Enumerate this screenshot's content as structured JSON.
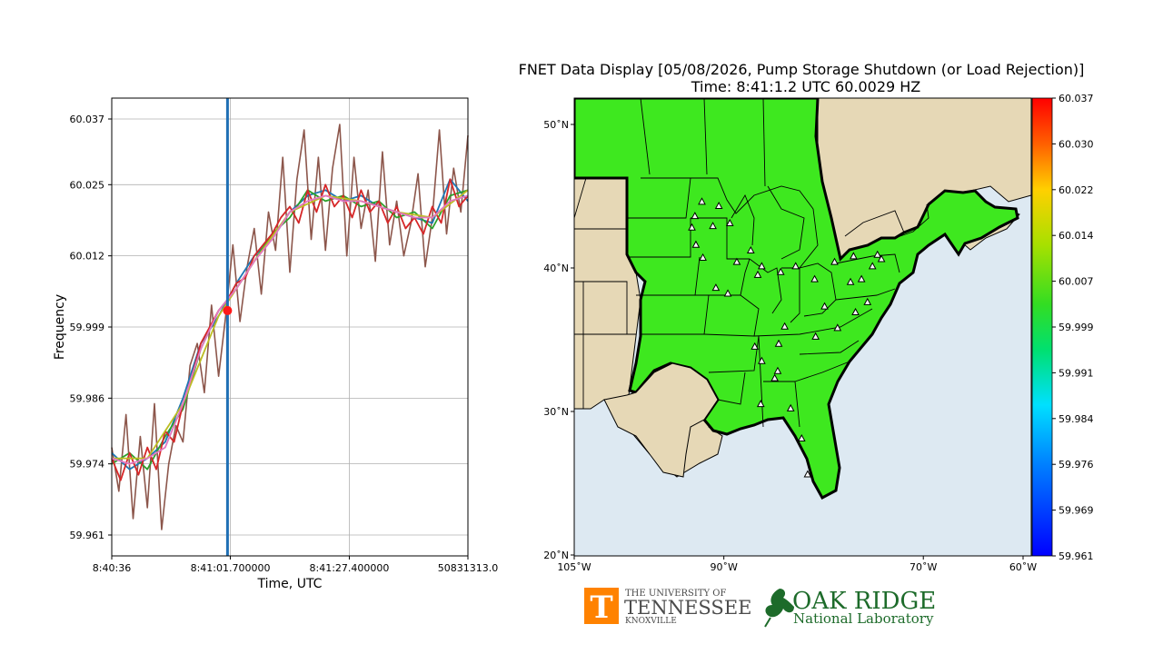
{
  "title": {
    "line1": "FNET Data Display [05/08/2026, Pump Storage Shutdown (or Load Rejection)]",
    "line2": "Time: 8:41:1.2 UTC  60.0029 HZ"
  },
  "chart_data": [
    {
      "type": "line",
      "xlabel": "Time, UTC",
      "ylabel": "Frequency",
      "x_tick_labels": [
        "8:40:36",
        "8:41:01.700000",
        "8:41:27.400000",
        "50831313.0"
      ],
      "y_ticks": [
        59.961,
        59.974,
        59.986,
        59.999,
        60.012,
        60.025,
        60.037
      ],
      "ylim": [
        59.961,
        60.037
      ],
      "grid": true,
      "cursor_fraction": 0.325,
      "marker_value": 60.002,
      "series": [
        {
          "color": "#8c564b",
          "x": [
            0,
            0.02,
            0.04,
            0.06,
            0.08,
            0.1,
            0.12,
            0.14,
            0.16,
            0.18,
            0.2,
            0.22,
            0.24,
            0.26,
            0.28,
            0.3,
            0.32,
            0.34,
            0.36,
            0.38,
            0.4,
            0.42,
            0.44,
            0.46,
            0.48,
            0.5,
            0.52,
            0.54,
            0.56,
            0.58,
            0.6,
            0.62,
            0.64,
            0.66,
            0.68,
            0.7,
            0.72,
            0.74,
            0.76,
            0.78,
            0.8,
            0.82,
            0.84,
            0.86,
            0.88,
            0.9,
            0.92,
            0.94,
            0.96,
            0.98,
            1.0
          ],
          "values": [
            59.977,
            59.969,
            59.983,
            59.964,
            59.979,
            59.966,
            59.985,
            59.962,
            59.974,
            59.981,
            59.978,
            59.992,
            59.996,
            59.987,
            60.003,
            59.99,
            60.001,
            60.014,
            60.0,
            60.01,
            60.017,
            60.005,
            60.02,
            60.013,
            60.03,
            60.009,
            60.026,
            60.035,
            60.015,
            60.03,
            60.013,
            60.028,
            60.036,
            60.012,
            60.03,
            60.017,
            60.024,
            60.011,
            60.031,
            60.014,
            60.022,
            60.012,
            60.018,
            60.027,
            60.01,
            60.019,
            60.035,
            60.016,
            60.028,
            60.02,
            60.034
          ]
        },
        {
          "color": "#1f77b4",
          "x": [
            0,
            0.05,
            0.1,
            0.15,
            0.2,
            0.25,
            0.3,
            0.35,
            0.4,
            0.45,
            0.5,
            0.55,
            0.6,
            0.65,
            0.7,
            0.75,
            0.8,
            0.85,
            0.9,
            0.95,
            1.0
          ],
          "values": [
            59.976,
            59.973,
            59.975,
            59.978,
            59.986,
            59.996,
            60.001,
            60.007,
            60.012,
            60.015,
            60.02,
            60.023,
            60.024,
            60.022,
            60.023,
            60.021,
            60.02,
            60.019,
            60.018,
            60.026,
            60.022
          ]
        },
        {
          "color": "#2ca02c",
          "x": [
            0,
            0.05,
            0.1,
            0.15,
            0.2,
            0.25,
            0.3,
            0.35,
            0.4,
            0.45,
            0.5,
            0.55,
            0.6,
            0.65,
            0.7,
            0.75,
            0.8,
            0.85,
            0.9,
            0.95,
            1.0
          ],
          "values": [
            59.974,
            59.976,
            59.973,
            59.979,
            59.984,
            59.995,
            60.002,
            60.006,
            60.011,
            60.016,
            60.019,
            60.024,
            60.022,
            60.023,
            60.021,
            60.022,
            60.019,
            60.02,
            60.017,
            60.023,
            60.024
          ]
        },
        {
          "color": "#d62728",
          "x": [
            0,
            0.025,
            0.05,
            0.075,
            0.1,
            0.125,
            0.15,
            0.175,
            0.2,
            0.225,
            0.25,
            0.275,
            0.3,
            0.325,
            0.35,
            0.375,
            0.4,
            0.425,
            0.45,
            0.475,
            0.5,
            0.525,
            0.55,
            0.575,
            0.6,
            0.625,
            0.65,
            0.675,
            0.7,
            0.725,
            0.75,
            0.775,
            0.8,
            0.825,
            0.85,
            0.875,
            0.9,
            0.925,
            0.95,
            0.975,
            1.0
          ],
          "values": [
            59.975,
            59.971,
            59.976,
            59.972,
            59.977,
            59.973,
            59.98,
            59.978,
            59.985,
            59.99,
            59.996,
            59.999,
            60.002,
            60.004,
            60.007,
            60.008,
            60.012,
            60.014,
            60.016,
            60.019,
            60.021,
            60.018,
            60.024,
            60.02,
            60.025,
            60.021,
            60.023,
            60.019,
            60.024,
            60.02,
            60.022,
            60.018,
            60.021,
            60.017,
            60.019,
            60.016,
            60.021,
            60.018,
            60.026,
            60.021,
            60.023
          ]
        },
        {
          "color": "#bcbd22",
          "x": [
            0,
            0.1,
            0.2,
            0.3,
            0.4,
            0.5,
            0.6,
            0.7,
            0.8,
            0.9,
            1.0
          ],
          "values": [
            59.975,
            59.975,
            59.985,
            60.001,
            60.011,
            60.02,
            60.023,
            60.022,
            60.02,
            60.019,
            60.024
          ]
        },
        {
          "color": "#e377c2",
          "x": [
            0,
            0.05,
            0.1,
            0.15,
            0.2,
            0.25,
            0.3,
            0.35,
            0.4,
            0.45,
            0.5,
            0.55,
            0.6,
            0.65,
            0.7,
            0.75,
            0.8,
            0.85,
            0.9,
            0.95,
            1.0
          ],
          "values": [
            59.975,
            59.974,
            59.975,
            59.977,
            59.985,
            59.995,
            60.002,
            60.006,
            60.011,
            60.015,
            60.02,
            60.022,
            60.023,
            60.022,
            60.022,
            60.021,
            60.02,
            60.019,
            60.019,
            60.022,
            60.023
          ]
        }
      ]
    },
    {
      "type": "map",
      "x_tick_labels": [
        "105$^\\circ$W",
        "90$^\\circ$W",
        "70$^\\circ$W",
        "60$^\\circ$W"
      ],
      "x_tick_labels_display": [
        "105˚W",
        "90˚W",
        "70˚W",
        "60˚W"
      ],
      "y_tick_labels_display": [
        "50˚N",
        "40˚N",
        "30˚N",
        "20˚N"
      ],
      "colorbar_ticks": [
        "60.037",
        "60.030",
        "60.022",
        "60.014",
        "60.007",
        "59.999",
        "59.991",
        "59.984",
        "59.976",
        "59.969",
        "59.961"
      ],
      "colorbar_range": [
        59.961,
        60.037
      ],
      "region_value": 60.0029,
      "region_color": "#3ee81f",
      "land_color": "#e6d8b6",
      "ocean_color": "#dde9f2",
      "stations": [
        [
          -92.9,
          43.6
        ],
        [
          -92.2,
          44.6
        ],
        [
          -90.5,
          44.3
        ],
        [
          -93.2,
          42.8
        ],
        [
          -92.8,
          41.6
        ],
        [
          -91.1,
          42.9
        ],
        [
          -89.4,
          43.1
        ],
        [
          -92.1,
          40.7
        ],
        [
          -90.8,
          38.6
        ],
        [
          -89.6,
          38.2
        ],
        [
          -88.7,
          40.4
        ],
        [
          -87.3,
          41.2
        ],
        [
          -86.6,
          39.5
        ],
        [
          -86.2,
          40.1
        ],
        [
          -84.3,
          39.7
        ],
        [
          -82.8,
          40.1
        ],
        [
          -80.9,
          39.2
        ],
        [
          -78.9,
          40.4
        ],
        [
          -77.0,
          40.8
        ],
        [
          -75.1,
          40.1
        ],
        [
          -74.6,
          40.9
        ],
        [
          -74.2,
          40.6
        ],
        [
          -76.2,
          39.2
        ],
        [
          -79.9,
          37.3
        ],
        [
          -78.6,
          35.8
        ],
        [
          -80.8,
          35.2
        ],
        [
          -83.9,
          35.9
        ],
        [
          -84.5,
          34.7
        ],
        [
          -86.9,
          34.5
        ],
        [
          -86.2,
          33.5
        ],
        [
          -84.6,
          32.8
        ],
        [
          -84.9,
          32.3
        ],
        [
          -86.3,
          30.5
        ],
        [
          -83.3,
          30.2
        ],
        [
          -82.2,
          28.1
        ],
        [
          -81.6,
          25.6
        ],
        [
          -77.3,
          39.0
        ],
        [
          -75.6,
          37.6
        ],
        [
          -76.8,
          36.9
        ]
      ]
    }
  ],
  "logos": {
    "ut_line1": "THE UNIVERSITY OF",
    "ut_line2": "TENNESSEE",
    "ut_line3": "KNOXVILLE",
    "ut_mark": "T",
    "ornl_line1": "OAK RIDGE",
    "ornl_line2": "National Laboratory"
  }
}
